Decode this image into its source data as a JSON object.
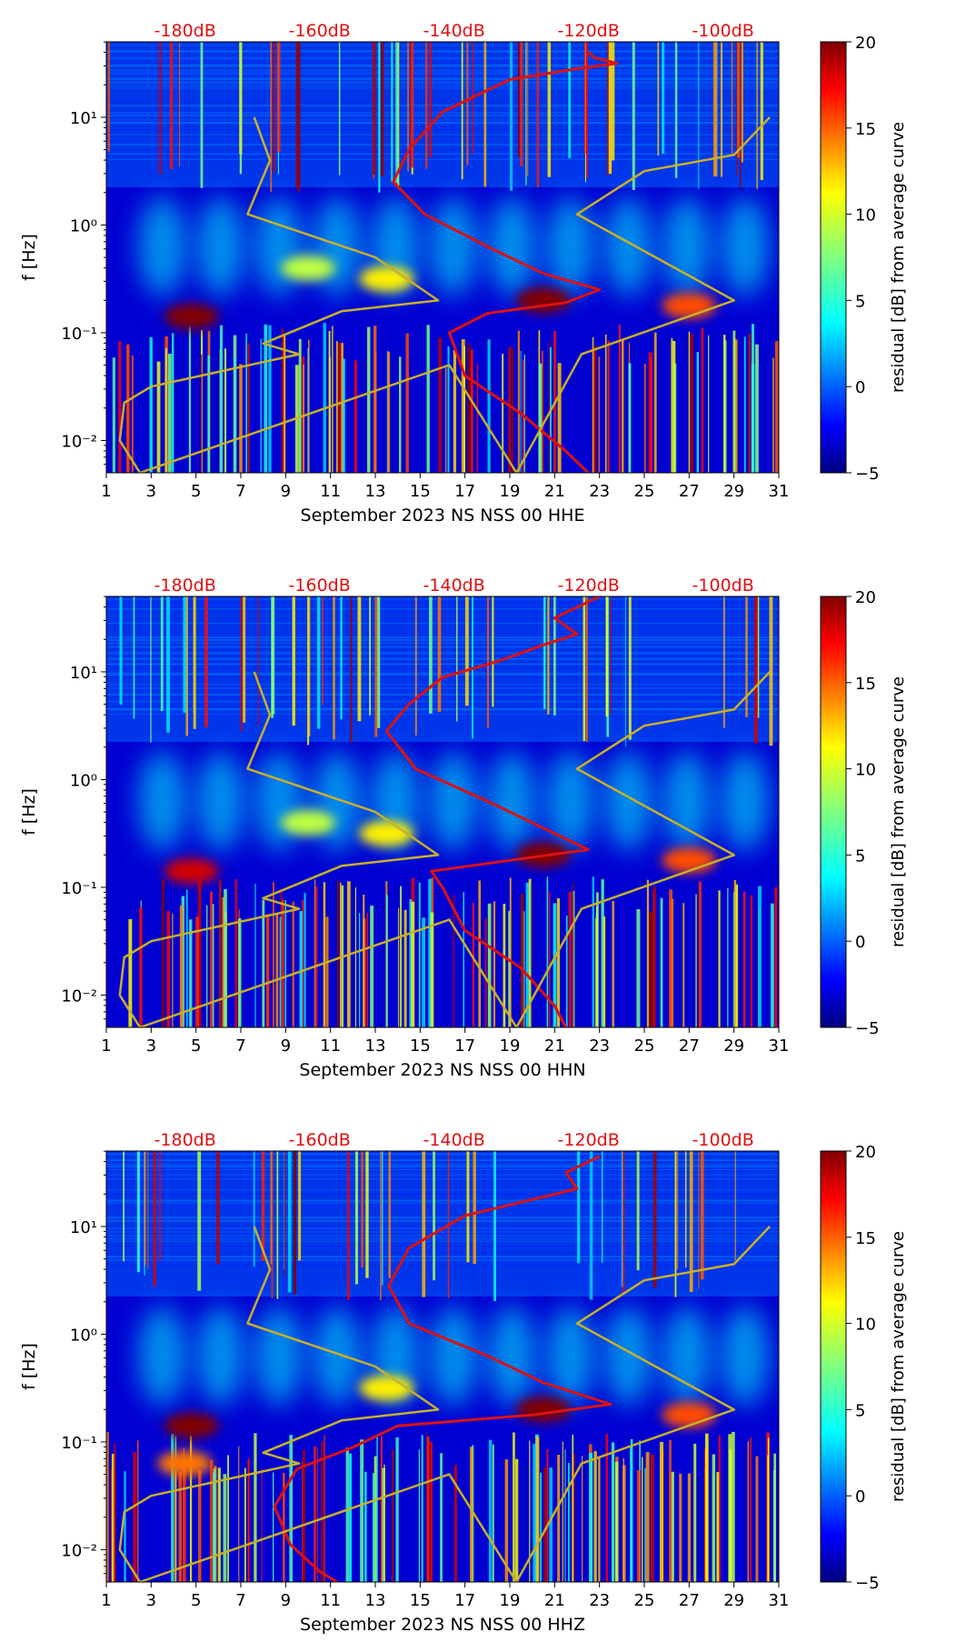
{
  "chart_data": [
    {
      "type": "heatmap",
      "panel": "HHE",
      "xlabel": "September 2023 NS NSS 00 HHE",
      "ylabel": "f [Hz]",
      "xlim": [
        1,
        31
      ],
      "xticks": [
        "1",
        "3",
        "5",
        "7",
        "9",
        "11",
        "13",
        "15",
        "17",
        "19",
        "21",
        "23",
        "25",
        "27",
        "29",
        "31"
      ],
      "ylim_log10": [
        -2.3,
        1.7
      ],
      "yticks": [
        {
          "exp": "-2",
          "label": "10⁻²"
        },
        {
          "exp": "-1",
          "label": "10⁻¹"
        },
        {
          "exp": "0",
          "label": "10⁰"
        },
        {
          "exp": "1",
          "label": "10¹"
        }
      ],
      "top_labels": [
        "-180dB",
        "-160dB",
        "-140dB",
        "-120dB",
        "-100dB"
      ],
      "colorbar": {
        "label": "residual [dB] from average curve",
        "range": [
          -5,
          20
        ],
        "ticks": [
          "−5",
          "0",
          "5",
          "10",
          "15",
          "20"
        ]
      },
      "bands": [
        {
          "day": 4.8,
          "log10f": -0.85,
          "value": 20
        },
        {
          "day": 20.5,
          "log10f": -0.7,
          "value": 20
        },
        {
          "day": 27,
          "log10f": -0.75,
          "value": 15
        },
        {
          "day": 13.5,
          "log10f": -0.5,
          "value": 11
        },
        {
          "day": 10,
          "log10f": -0.4,
          "value": 9
        }
      ],
      "series": [
        {
          "name": "median PSD (red)",
          "color": "#dd1111",
          "points": [
            [
              22.5,
              1.6
            ],
            [
              22.8,
              1.55
            ],
            [
              23.8,
              1.5
            ],
            [
              22,
              1.45
            ],
            [
              19,
              1.35
            ],
            [
              16,
              1.05
            ],
            [
              14.5,
              0.7
            ],
            [
              13.8,
              0.4
            ],
            [
              15.2,
              0.1
            ],
            [
              18,
              -0.2
            ],
            [
              20.5,
              -0.45
            ],
            [
              23,
              -0.6
            ],
            [
              21.5,
              -0.72
            ],
            [
              18,
              -0.82
            ],
            [
              16.3,
              -1.0
            ],
            [
              17,
              -1.4
            ],
            [
              19.5,
              -1.75
            ],
            [
              21.5,
              -2.1
            ],
            [
              22.5,
              -2.3
            ]
          ]
        },
        {
          "name": "noise model (yellow)",
          "color": "#c8b02a",
          "points": [
            [
              7.6,
              1.0
            ],
            [
              8.3,
              0.6
            ],
            [
              7.3,
              0.1
            ],
            [
              13,
              -0.3
            ],
            [
              15.8,
              -0.7
            ],
            [
              11.5,
              -0.8
            ],
            [
              8,
              -1.1
            ],
            [
              9.6,
              -1.2
            ],
            [
              3,
              -1.5
            ],
            [
              1.8,
              -1.65
            ],
            [
              1.6,
              -2.0
            ],
            [
              2.5,
              -2.3
            ],
            [
              16.3,
              -1.3
            ],
            [
              17.5,
              -1.7
            ],
            [
              19.3,
              -2.3
            ],
            [
              22.2,
              -1.2
            ],
            [
              29,
              -0.7
            ],
            [
              22,
              0.1
            ],
            [
              25,
              0.5
            ],
            [
              29,
              0.65
            ],
            [
              30.6,
              1.0
            ]
          ]
        }
      ]
    },
    {
      "type": "heatmap",
      "panel": "HHN",
      "xlabel": "September 2023 NS NSS 00 HHN",
      "ylabel": "f [Hz]",
      "xlim": [
        1,
        31
      ],
      "xticks": [
        "1",
        "3",
        "5",
        "7",
        "9",
        "11",
        "13",
        "15",
        "17",
        "19",
        "21",
        "23",
        "25",
        "27",
        "29",
        "31"
      ],
      "ylim_log10": [
        -2.3,
        1.7
      ],
      "yticks": [
        {
          "exp": "-2",
          "label": "10⁻²"
        },
        {
          "exp": "-1",
          "label": "10⁻¹"
        },
        {
          "exp": "0",
          "label": "10⁰"
        },
        {
          "exp": "1",
          "label": "10¹"
        }
      ],
      "top_labels": [
        "-180dB",
        "-160dB",
        "-140dB",
        "-120dB",
        "-100dB"
      ],
      "colorbar": {
        "label": "residual [dB] from average curve",
        "range": [
          -5,
          20
        ],
        "ticks": [
          "−5",
          "0",
          "5",
          "10",
          "15",
          "20"
        ]
      },
      "bands": [
        {
          "day": 4.8,
          "log10f": -0.85,
          "value": 18
        },
        {
          "day": 20.5,
          "log10f": -0.7,
          "value": 20
        },
        {
          "day": 27,
          "log10f": -0.75,
          "value": 15
        },
        {
          "day": 13.5,
          "log10f": -0.5,
          "value": 11
        },
        {
          "day": 10,
          "log10f": -0.4,
          "value": 9
        }
      ],
      "series": [
        {
          "name": "median PSD (red)",
          "color": "#dd1111",
          "points": [
            [
              23,
              1.7
            ],
            [
              21,
              1.5
            ],
            [
              22,
              1.35
            ],
            [
              20.5,
              1.25
            ],
            [
              18.5,
              1.1
            ],
            [
              16,
              0.95
            ],
            [
              14.5,
              0.7
            ],
            [
              13.5,
              0.45
            ],
            [
              14.8,
              0.1
            ],
            [
              18,
              -0.2
            ],
            [
              20.5,
              -0.45
            ],
            [
              22.5,
              -0.65
            ],
            [
              19,
              -0.75
            ],
            [
              15.5,
              -0.85
            ],
            [
              16,
              -1.0
            ],
            [
              17,
              -1.4
            ],
            [
              19.5,
              -1.75
            ],
            [
              21,
              -2.1
            ],
            [
              21.5,
              -2.3
            ]
          ]
        },
        {
          "name": "noise model (yellow)",
          "color": "#c8b02a",
          "points": [
            [
              7.6,
              1.0
            ],
            [
              8.3,
              0.6
            ],
            [
              7.3,
              0.1
            ],
            [
              13,
              -0.3
            ],
            [
              15.8,
              -0.7
            ],
            [
              11.5,
              -0.8
            ],
            [
              8,
              -1.1
            ],
            [
              9.6,
              -1.2
            ],
            [
              3,
              -1.5
            ],
            [
              1.8,
              -1.65
            ],
            [
              1.6,
              -2.0
            ],
            [
              2.5,
              -2.3
            ],
            [
              16.3,
              -1.3
            ],
            [
              17.5,
              -1.7
            ],
            [
              19.3,
              -2.3
            ],
            [
              22.2,
              -1.2
            ],
            [
              29,
              -0.7
            ],
            [
              22,
              0.1
            ],
            [
              25,
              0.5
            ],
            [
              29,
              0.65
            ],
            [
              30.6,
              1.0
            ]
          ]
        }
      ]
    },
    {
      "type": "heatmap",
      "panel": "HHZ",
      "xlabel": "September 2023 NS NSS 00 HHZ",
      "ylabel": "f [Hz]",
      "xlim": [
        1,
        31
      ],
      "xticks": [
        "1",
        "3",
        "5",
        "7",
        "9",
        "11",
        "13",
        "15",
        "17",
        "19",
        "21",
        "23",
        "25",
        "27",
        "29",
        "31"
      ],
      "ylim_log10": [
        -2.3,
        1.7
      ],
      "yticks": [
        {
          "exp": "-2",
          "label": "10⁻²"
        },
        {
          "exp": "-1",
          "label": "10⁻¹"
        },
        {
          "exp": "0",
          "label": "10⁰"
        },
        {
          "exp": "1",
          "label": "10¹"
        }
      ],
      "top_labels": [
        "-180dB",
        "-160dB",
        "-140dB",
        "-120dB",
        "-100dB"
      ],
      "colorbar": {
        "label": "residual [dB] from average curve",
        "range": [
          -5,
          20
        ],
        "ticks": [
          "−5",
          "0",
          "5",
          "10",
          "15",
          "20"
        ]
      },
      "bands": [
        {
          "day": 4.8,
          "log10f": -0.85,
          "value": 20
        },
        {
          "day": 20.5,
          "log10f": -0.7,
          "value": 20
        },
        {
          "day": 27,
          "log10f": -0.75,
          "value": 15
        },
        {
          "day": 4.5,
          "log10f": -1.2,
          "value": 14
        },
        {
          "day": 13.5,
          "log10f": -0.5,
          "value": 11
        }
      ],
      "series": [
        {
          "name": "median PSD (red)",
          "color": "#dd1111",
          "points": [
            [
              23,
              1.65
            ],
            [
              21.5,
              1.5
            ],
            [
              22,
              1.35
            ],
            [
              20,
              1.25
            ],
            [
              17,
              1.1
            ],
            [
              14.5,
              0.8
            ],
            [
              13.6,
              0.45
            ],
            [
              14.5,
              0.1
            ],
            [
              18,
              -0.2
            ],
            [
              20.5,
              -0.45
            ],
            [
              23.5,
              -0.65
            ],
            [
              20,
              -0.75
            ],
            [
              14,
              -0.85
            ],
            [
              12,
              -1.05
            ],
            [
              9.5,
              -1.25
            ],
            [
              8.5,
              -1.6
            ],
            [
              9.2,
              -1.95
            ],
            [
              10.5,
              -2.2
            ],
            [
              11.3,
              -2.3
            ]
          ]
        },
        {
          "name": "noise model (yellow)",
          "color": "#c8b02a",
          "points": [
            [
              7.6,
              1.0
            ],
            [
              8.3,
              0.6
            ],
            [
              7.3,
              0.1
            ],
            [
              13,
              -0.3
            ],
            [
              15.8,
              -0.7
            ],
            [
              11.5,
              -0.8
            ],
            [
              8,
              -1.1
            ],
            [
              9.6,
              -1.2
            ],
            [
              3,
              -1.5
            ],
            [
              1.8,
              -1.65
            ],
            [
              1.6,
              -2.0
            ],
            [
              2.5,
              -2.3
            ],
            [
              16.3,
              -1.3
            ],
            [
              17.5,
              -1.7
            ],
            [
              19.3,
              -2.3
            ],
            [
              22.2,
              -1.2
            ],
            [
              29,
              -0.7
            ],
            [
              22,
              0.1
            ],
            [
              25,
              0.5
            ],
            [
              29,
              0.65
            ],
            [
              30.6,
              1.0
            ]
          ]
        }
      ]
    }
  ]
}
